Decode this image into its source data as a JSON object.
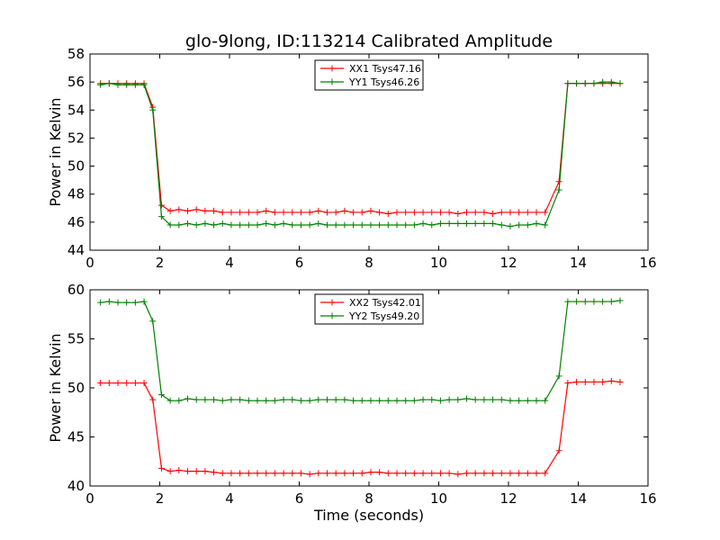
{
  "title": "glo-9long, ID:113214 Calibrated Amplitude",
  "chart_data": [
    {
      "type": "line",
      "ylabel": "Power in Kelvin",
      "xlabel": "",
      "xlim": [
        0,
        16
      ],
      "ylim": [
        44,
        58
      ],
      "xticks": [
        0,
        2,
        4,
        6,
        8,
        10,
        12,
        14,
        16
      ],
      "yticks": [
        44,
        46,
        48,
        50,
        52,
        54,
        56,
        58
      ],
      "grid": false,
      "legend_position": "top-center",
      "x": [
        0.3,
        0.55,
        0.8,
        1.05,
        1.3,
        1.55,
        1.8,
        2.05,
        2.3,
        2.55,
        2.8,
        3.05,
        3.3,
        3.55,
        3.8,
        4.05,
        4.3,
        4.55,
        4.8,
        5.05,
        5.3,
        5.55,
        5.8,
        6.05,
        6.3,
        6.55,
        6.8,
        7.05,
        7.3,
        7.55,
        7.8,
        8.05,
        8.3,
        8.55,
        8.8,
        9.05,
        9.3,
        9.55,
        9.8,
        10.05,
        10.3,
        10.55,
        10.8,
        11.05,
        11.3,
        11.55,
        11.8,
        12.05,
        12.3,
        12.55,
        12.8,
        13.05,
        13.45,
        13.7,
        13.95,
        14.2,
        14.45,
        14.7,
        14.95,
        15.2
      ],
      "series": [
        {
          "name": "XX1 Tsys47.16",
          "color": "#ff0000",
          "values": [
            55.9,
            55.9,
            55.9,
            55.9,
            55.9,
            55.9,
            54.2,
            47.2,
            46.8,
            46.9,
            46.8,
            46.9,
            46.8,
            46.8,
            46.7,
            46.7,
            46.7,
            46.7,
            46.7,
            46.8,
            46.7,
            46.7,
            46.7,
            46.7,
            46.7,
            46.8,
            46.7,
            46.7,
            46.8,
            46.7,
            46.7,
            46.8,
            46.7,
            46.6,
            46.7,
            46.7,
            46.7,
            46.7,
            46.7,
            46.7,
            46.7,
            46.6,
            46.7,
            46.7,
            46.7,
            46.6,
            46.7,
            46.7,
            46.7,
            46.7,
            46.7,
            46.7,
            48.9,
            55.9,
            55.9,
            55.9,
            55.9,
            55.9,
            55.9,
            55.9
          ]
        },
        {
          "name": "YY1 Tsys46.26",
          "color": "#008000",
          "values": [
            55.8,
            55.9,
            55.8,
            55.8,
            55.8,
            55.8,
            54.0,
            46.4,
            45.8,
            45.8,
            45.9,
            45.8,
            45.9,
            45.8,
            45.9,
            45.8,
            45.8,
            45.8,
            45.8,
            45.9,
            45.8,
            45.9,
            45.8,
            45.8,
            45.8,
            45.9,
            45.8,
            45.8,
            45.8,
            45.8,
            45.8,
            45.8,
            45.8,
            45.8,
            45.8,
            45.8,
            45.8,
            45.9,
            45.8,
            45.9,
            45.9,
            45.9,
            45.9,
            45.9,
            45.9,
            45.9,
            45.8,
            45.7,
            45.8,
            45.8,
            45.9,
            45.8,
            48.3,
            55.9,
            55.9,
            55.9,
            55.9,
            56.0,
            56.0,
            55.9
          ]
        }
      ]
    },
    {
      "type": "line",
      "ylabel": "Power in Kelvin",
      "xlabel": "Time (seconds)",
      "xlim": [
        0,
        16
      ],
      "ylim": [
        40,
        60
      ],
      "xticks": [
        0,
        2,
        4,
        6,
        8,
        10,
        12,
        14,
        16
      ],
      "yticks": [
        40,
        45,
        50,
        55,
        60
      ],
      "grid": false,
      "legend_position": "top-center",
      "x": [
        0.3,
        0.55,
        0.8,
        1.05,
        1.3,
        1.55,
        1.8,
        2.05,
        2.3,
        2.55,
        2.8,
        3.05,
        3.3,
        3.55,
        3.8,
        4.05,
        4.3,
        4.55,
        4.8,
        5.05,
        5.3,
        5.55,
        5.8,
        6.05,
        6.3,
        6.55,
        6.8,
        7.05,
        7.3,
        7.55,
        7.8,
        8.05,
        8.3,
        8.55,
        8.8,
        9.05,
        9.3,
        9.55,
        9.8,
        10.05,
        10.3,
        10.55,
        10.8,
        11.05,
        11.3,
        11.55,
        11.8,
        12.05,
        12.3,
        12.55,
        12.8,
        13.05,
        13.45,
        13.7,
        13.95,
        14.2,
        14.45,
        14.7,
        14.95,
        15.2
      ],
      "series": [
        {
          "name": "XX2 Tsys42.01",
          "color": "#ff0000",
          "values": [
            50.5,
            50.5,
            50.5,
            50.5,
            50.5,
            50.5,
            48.8,
            41.8,
            41.5,
            41.6,
            41.5,
            41.5,
            41.5,
            41.4,
            41.3,
            41.3,
            41.3,
            41.3,
            41.3,
            41.3,
            41.3,
            41.3,
            41.3,
            41.3,
            41.2,
            41.3,
            41.3,
            41.3,
            41.3,
            41.3,
            41.3,
            41.4,
            41.4,
            41.3,
            41.3,
            41.3,
            41.3,
            41.3,
            41.3,
            41.3,
            41.3,
            41.2,
            41.3,
            41.3,
            41.3,
            41.3,
            41.3,
            41.3,
            41.3,
            41.3,
            41.3,
            41.3,
            43.6,
            50.5,
            50.6,
            50.6,
            50.6,
            50.6,
            50.7,
            50.6
          ]
        },
        {
          "name": "YY2 Tsys49.20",
          "color": "#008000",
          "values": [
            58.7,
            58.8,
            58.7,
            58.7,
            58.7,
            58.8,
            56.8,
            49.3,
            48.7,
            48.7,
            48.9,
            48.8,
            48.8,
            48.8,
            48.7,
            48.8,
            48.8,
            48.7,
            48.7,
            48.7,
            48.7,
            48.8,
            48.8,
            48.7,
            48.7,
            48.8,
            48.8,
            48.8,
            48.8,
            48.7,
            48.7,
            48.7,
            48.7,
            48.7,
            48.7,
            48.7,
            48.7,
            48.8,
            48.8,
            48.7,
            48.8,
            48.8,
            48.9,
            48.8,
            48.8,
            48.8,
            48.8,
            48.7,
            48.7,
            48.7,
            48.7,
            48.7,
            51.2,
            58.8,
            58.8,
            58.8,
            58.8,
            58.8,
            58.8,
            58.9
          ]
        }
      ]
    }
  ]
}
